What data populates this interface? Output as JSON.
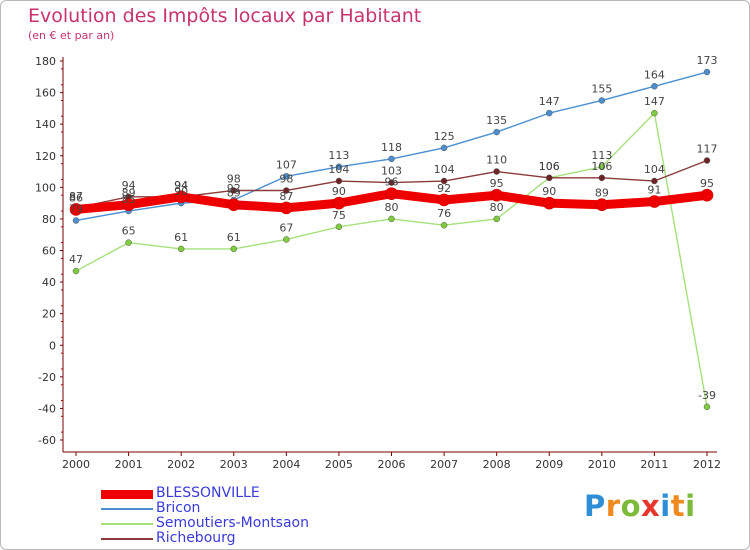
{
  "title": "Evolution des Impôts locaux par Habitant",
  "subtitle": "(en € et par an)",
  "logo": {
    "letters": [
      "P",
      "r",
      "o",
      "x",
      "i",
      "t",
      "i"
    ],
    "colors": [
      "#2f8fd6",
      "#f08a1e",
      "#7cba3a",
      "#e8382e",
      "#2f8fd6",
      "#f08a1e",
      "#7cba3a"
    ]
  },
  "chart_data": {
    "type": "line",
    "x": [
      "2000",
      "2001",
      "2002",
      "2003",
      "2004",
      "2005",
      "2006",
      "2007",
      "2008",
      "2009",
      "2010",
      "2011",
      "2012"
    ],
    "ylim": [
      -60,
      180
    ],
    "yticks": [
      "-60",
      "-40",
      "-20",
      "0",
      "20",
      "40",
      "60",
      "80",
      "100",
      "120",
      "140",
      "160",
      "180"
    ],
    "grid": false,
    "legend_position": "bottom-left",
    "series": [
      {
        "name": "Bricon",
        "color": "#4b8fd0",
        "point_color": "#4b8fd0",
        "values": [
          79,
          85,
          90,
          92,
          107,
          113,
          118,
          125,
          135,
          147,
          155,
          164,
          173
        ],
        "labels": [
          "79",
          "85",
          "90",
          "92",
          "107",
          "113",
          "118",
          "125",
          "135",
          "147",
          "155",
          "164",
          "173"
        ]
      },
      {
        "name": "Semoutiers-Montsaon",
        "color": "#a6e07c",
        "point_color": "#7fcc3e",
        "values": [
          47,
          65,
          61,
          61,
          67,
          75,
          80,
          76,
          80,
          106,
          113,
          147,
          -39
        ],
        "labels": [
          "47",
          "65",
          "61",
          "61",
          "67",
          "75",
          "80",
          "76",
          "80",
          "106",
          "113",
          "147",
          "-39"
        ]
      },
      {
        "name": "Richebourg",
        "color": "#8b3a3a",
        "point_color": "#6e2424",
        "values": [
          87,
          94,
          94,
          98,
          98,
          104,
          103,
          104,
          110,
          106,
          106,
          104,
          117
        ],
        "labels": [
          "87",
          "94",
          "94",
          "98",
          "98",
          "104",
          "103",
          "104",
          "110",
          "106",
          "106",
          "104",
          "117"
        ]
      },
      {
        "name": "BLESSONVILLE",
        "color": "#ee0000",
        "point_color": "#ee0000",
        "values": [
          86,
          89,
          94,
          89,
          87,
          90,
          96,
          92,
          95,
          90,
          89,
          91,
          95
        ],
        "labels": [
          "86",
          "89",
          "94",
          "89",
          "87",
          "90",
          "96",
          "92",
          "95",
          "90",
          "89",
          "91",
          "95"
        ]
      }
    ]
  },
  "legend": [
    {
      "label": "BLESSONVILLE",
      "color": "#ee0000",
      "thick": true
    },
    {
      "label": "Bricon",
      "color": "#4b8fd0",
      "thick": false
    },
    {
      "label": "Semoutiers-Montsaon",
      "color": "#a6e07c",
      "thick": false
    },
    {
      "label": "Richebourg",
      "color": "#8b3a3a",
      "thick": false
    }
  ]
}
